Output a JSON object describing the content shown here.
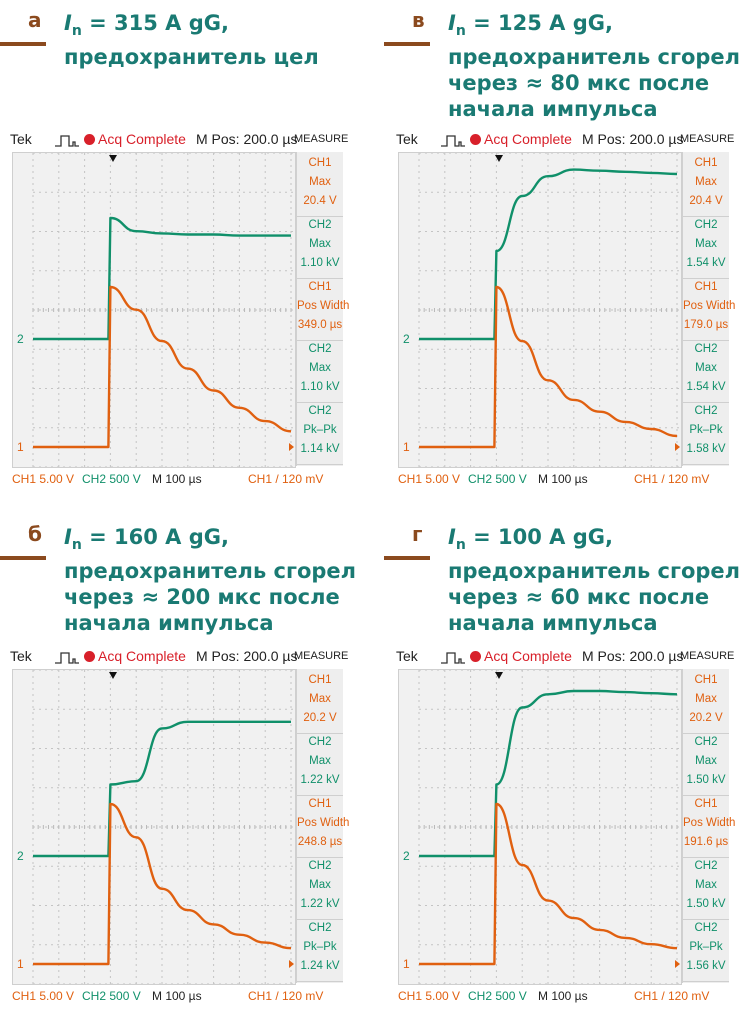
{
  "scopes": [
    {
      "id": "a",
      "caption": {
        "letter": "а",
        "line1_sub": "n",
        "line1_rest": " = 315 A gG,",
        "lines": [
          "предохранитель цел"
        ]
      },
      "header": {
        "brand": "Tek",
        "status": "Acq Complete",
        "mpos": "M Pos: 200.0 µs",
        "measure": "MEASURE"
      },
      "measurements": [
        {
          "channel": "CH1",
          "name": "Max",
          "value": "20.4 V",
          "color": "#e06010"
        },
        {
          "channel": "CH2",
          "name": "Max",
          "value": "1.10 kV",
          "color": "#10906a"
        },
        {
          "channel": "CH1",
          "name": "Pos Width",
          "value": "349.0 µs",
          "color": "#e06010"
        },
        {
          "channel": "CH2",
          "name": "Max",
          "value": "1.10 kV",
          "color": "#10906a"
        },
        {
          "channel": "CH2",
          "name": "Pk–Pk",
          "value": "1.14 kV",
          "color": "#10906a"
        }
      ],
      "footer": {
        "ch1": "CH1 5.00 V",
        "ch2": "CH2 500 V",
        "time": "M 100 µs",
        "trigger": "CH1 / 120 mV"
      },
      "markers": {
        "ch1": "1",
        "ch2": "2"
      }
    },
    {
      "id": "v",
      "caption": {
        "letter": "в",
        "line1_sub": "n",
        "line1_rest": " = 125 A gG,",
        "lines": [
          "предохранитель сгорел",
          "через ≈ 80 мкс после",
          "начала импульса"
        ]
      },
      "header": {
        "brand": "Tek",
        "status": "Acq Complete",
        "mpos": "M Pos: 200.0 µs",
        "measure": "MEASURE"
      },
      "measurements": [
        {
          "channel": "CH1",
          "name": "Max",
          "value": "20.4 V",
          "color": "#e06010"
        },
        {
          "channel": "CH2",
          "name": "Max",
          "value": "1.54 kV",
          "color": "#10906a"
        },
        {
          "channel": "CH1",
          "name": "Pos Width",
          "value": "179.0 µs",
          "color": "#e06010"
        },
        {
          "channel": "CH2",
          "name": "Max",
          "value": "1.54 kV",
          "color": "#10906a"
        },
        {
          "channel": "CH2",
          "name": "Pk–Pk",
          "value": "1.58 kV",
          "color": "#10906a"
        }
      ],
      "footer": {
        "ch1": "CH1 5.00 V",
        "ch2": "CH2 500 V",
        "time": "M 100 µs",
        "trigger": "CH1 / 120 mV"
      },
      "markers": {
        "ch1": "1",
        "ch2": "2"
      }
    },
    {
      "id": "b",
      "caption": {
        "letter": "б",
        "line1_sub": "n",
        "line1_rest": " = 160 A gG,",
        "lines": [
          "предохранитель сгорел",
          "через ≈ 200 мкс после",
          "начала импульса"
        ]
      },
      "header": {
        "brand": "Tek",
        "status": "Acq Complete",
        "mpos": "M Pos: 200.0 µs",
        "measure": "MEASURE"
      },
      "measurements": [
        {
          "channel": "CH1",
          "name": "Max",
          "value": "20.2 V",
          "color": "#e06010"
        },
        {
          "channel": "CH2",
          "name": "Max",
          "value": "1.22 kV",
          "color": "#10906a"
        },
        {
          "channel": "CH1",
          "name": "Pos Width",
          "value": "248.8 µs",
          "color": "#e06010"
        },
        {
          "channel": "CH2",
          "name": "Max",
          "value": "1.22 kV",
          "color": "#10906a"
        },
        {
          "channel": "CH2",
          "name": "Pk–Pk",
          "value": "1.24 kV",
          "color": "#10906a"
        }
      ],
      "footer": {
        "ch1": "CH1 5.00 V",
        "ch2": "CH2 500 V",
        "time": "M 100 µs",
        "trigger": "CH1 / 120 mV"
      },
      "markers": {
        "ch1": "1",
        "ch2": "2"
      }
    },
    {
      "id": "g",
      "caption": {
        "letter": "г",
        "line1_sub": "n",
        "line1_rest": " = 100 A gG,",
        "lines": [
          "предохранитель сгорел",
          "через ≈ 60 мкс после",
          "начала импульса"
        ]
      },
      "header": {
        "brand": "Tek",
        "status": "Acq Complete",
        "mpos": "M Pos: 200.0 µs",
        "measure": "MEASURE"
      },
      "measurements": [
        {
          "channel": "CH1",
          "name": "Max",
          "value": "20.2 V",
          "color": "#e06010"
        },
        {
          "channel": "CH2",
          "name": "Max",
          "value": "1.50 kV",
          "color": "#10906a"
        },
        {
          "channel": "CH1",
          "name": "Pos Width",
          "value": "191.6 µs",
          "color": "#e06010"
        },
        {
          "channel": "CH2",
          "name": "Max",
          "value": "1.50 kV",
          "color": "#10906a"
        },
        {
          "channel": "CH2",
          "name": "Pk–Pk",
          "value": "1.56 kV",
          "color": "#10906a"
        }
      ],
      "footer": {
        "ch1": "CH1 5.00 V",
        "ch2": "CH2 500 V",
        "time": "M 100 µs",
        "trigger": "CH1 / 120 mV"
      },
      "markers": {
        "ch1": "1",
        "ch2": "2"
      }
    }
  ],
  "colors": {
    "ch1": "#e06010",
    "ch2": "#10906a",
    "status_dot": "#d8202a",
    "caption": "#1a7a73",
    "caption_accent": "#8b4a1e"
  },
  "icons": {
    "status": "red-dot-icon",
    "pulse": "pulse-icon",
    "trigger": "trigger-arrow-icon"
  },
  "chart_data": [
    {
      "type": "line",
      "x": [
        0,
        1,
        2,
        3,
        4,
        5,
        6,
        7,
        8,
        9,
        10
      ],
      "series": [
        {
          "values": [
            0,
            0,
            0,
            20.4,
            17.5,
            13.5,
            10,
            7.2,
            5,
            3.3,
            2
          ]
        },
        {
          "values": [
            0,
            0,
            0,
            1.1,
            0.98,
            0.96,
            0.95,
            0.95,
            0.94,
            0.94,
            0.94
          ]
        }
      ]
    },
    {
      "type": "line",
      "x": [
        0,
        1,
        2,
        3,
        4,
        5,
        6,
        7,
        8,
        9,
        10
      ],
      "series": [
        {
          "values": [
            0,
            0,
            0,
            20.4,
            13.5,
            8.5,
            6,
            4.5,
            3.2,
            2.3,
            1.4
          ]
        },
        {
          "values": [
            0,
            0,
            0,
            0.8,
            1.3,
            1.48,
            1.54,
            1.53,
            1.52,
            1.51,
            1.5
          ]
        }
      ]
    },
    {
      "type": "line",
      "x": [
        0,
        1,
        2,
        3,
        4,
        5,
        6,
        7,
        8,
        9,
        10
      ],
      "series": [
        {
          "values": [
            0,
            0,
            0,
            20.2,
            16,
            9.5,
            6.8,
            5,
            3.7,
            2.7,
            2
          ]
        },
        {
          "values": [
            0,
            0,
            0,
            0.65,
            0.68,
            1.16,
            1.22,
            1.22,
            1.22,
            1.22,
            1.22
          ]
        }
      ]
    },
    {
      "type": "line",
      "x": [
        0,
        1,
        2,
        3,
        4,
        5,
        6,
        7,
        8,
        9,
        10
      ],
      "series": [
        {
          "values": [
            0,
            0,
            0,
            20.2,
            12.5,
            8,
            5.8,
            4.3,
            3.3,
            2.5,
            2
          ]
        },
        {
          "values": [
            0,
            0,
            0,
            0.65,
            1.35,
            1.47,
            1.5,
            1.5,
            1.49,
            1.48,
            1.47
          ]
        }
      ]
    }
  ]
}
